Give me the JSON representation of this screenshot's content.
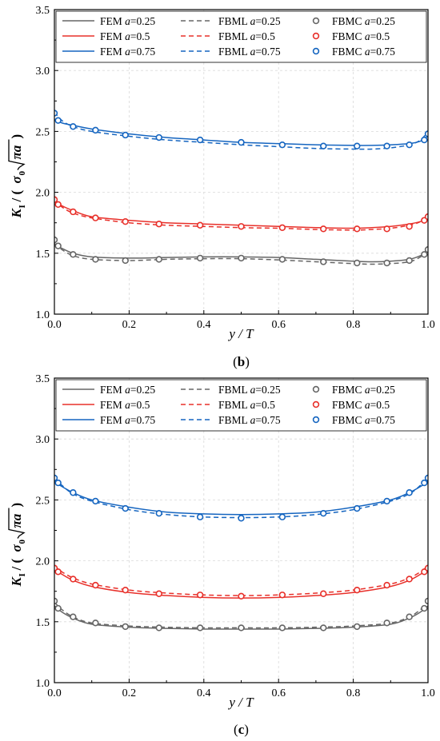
{
  "chart_data": [
    {
      "type": "line",
      "panel_label": "b",
      "xlabel": "y / T",
      "ylabel": "K_I / (σ₀√πa)",
      "xlim": [
        0,
        1
      ],
      "ylim": [
        1.0,
        3.5
      ],
      "xticks": [
        "0.0",
        "0.2",
        "0.4",
        "0.6",
        "0.8",
        "1.0"
      ],
      "yticks": [
        "1.0",
        "1.5",
        "2.0",
        "2.5",
        "3.0",
        "3.5"
      ],
      "grid": true,
      "legend_position": "top",
      "legend": [
        {
          "method": "FEM",
          "a": "0.25",
          "style": "solid",
          "color": "#666666"
        },
        {
          "method": "FBML",
          "a": "0.25",
          "style": "dashed",
          "color": "#666666"
        },
        {
          "method": "FBMC",
          "a": "0.25",
          "style": "circle",
          "color": "#666666"
        },
        {
          "method": "FEM",
          "a": "0.5",
          "style": "solid",
          "color": "#e8302a"
        },
        {
          "method": "FBML",
          "a": "0.5",
          "style": "dashed",
          "color": "#e8302a"
        },
        {
          "method": "FBMC",
          "a": "0.5",
          "style": "circle",
          "color": "#e8302a"
        },
        {
          "method": "FEM",
          "a": "0.75",
          "style": "solid",
          "color": "#1565c0"
        },
        {
          "method": "FBML",
          "a": "0.75",
          "style": "dashed",
          "color": "#1565c0"
        },
        {
          "method": "FBMC",
          "a": "0.75",
          "style": "circle",
          "color": "#1565c0"
        }
      ],
      "series": [
        {
          "key": "FEM a=0.25",
          "color": "#666666",
          "style": "solid",
          "x": [
            0,
            0.02,
            0.05,
            0.1,
            0.2,
            0.3,
            0.4,
            0.5,
            0.6,
            0.7,
            0.8,
            0.85,
            0.9,
            0.95,
            0.98,
            1.0
          ],
          "y": [
            1.57,
            1.54,
            1.5,
            1.47,
            1.46,
            1.465,
            1.47,
            1.47,
            1.465,
            1.45,
            1.435,
            1.43,
            1.435,
            1.45,
            1.48,
            1.51
          ]
        },
        {
          "key": "FBML a=0.25",
          "color": "#666666",
          "style": "dashed",
          "x": [
            0,
            0.02,
            0.05,
            0.1,
            0.2,
            0.3,
            0.4,
            0.5,
            0.6,
            0.7,
            0.8,
            0.85,
            0.9,
            0.95,
            0.98,
            1.0
          ],
          "y": [
            1.58,
            1.53,
            1.48,
            1.45,
            1.44,
            1.45,
            1.455,
            1.455,
            1.445,
            1.43,
            1.415,
            1.41,
            1.415,
            1.43,
            1.47,
            1.52
          ]
        },
        {
          "key": "FBMC a=0.25",
          "color": "#666666",
          "style": "circle",
          "x": [
            0.0,
            0.01,
            0.05,
            0.11,
            0.19,
            0.28,
            0.39,
            0.5,
            0.61,
            0.72,
            0.81,
            0.89,
            0.95,
            0.99,
            1.0
          ],
          "y": [
            1.61,
            1.56,
            1.49,
            1.45,
            1.44,
            1.45,
            1.46,
            1.46,
            1.45,
            1.43,
            1.42,
            1.42,
            1.44,
            1.49,
            1.53
          ]
        },
        {
          "key": "FEM a=0.5",
          "color": "#e8302a",
          "style": "solid",
          "x": [
            0,
            0.02,
            0.05,
            0.1,
            0.2,
            0.3,
            0.4,
            0.5,
            0.6,
            0.7,
            0.8,
            0.85,
            0.9,
            0.95,
            0.98,
            1.0
          ],
          "y": [
            1.93,
            1.89,
            1.85,
            1.8,
            1.77,
            1.75,
            1.74,
            1.73,
            1.72,
            1.71,
            1.705,
            1.71,
            1.72,
            1.74,
            1.76,
            1.79
          ]
        },
        {
          "key": "FBML a=0.5",
          "color": "#e8302a",
          "style": "dashed",
          "x": [
            0,
            0.02,
            0.05,
            0.1,
            0.2,
            0.3,
            0.4,
            0.5,
            0.6,
            0.7,
            0.8,
            0.85,
            0.9,
            0.95,
            0.98,
            1.0
          ],
          "y": [
            1.94,
            1.88,
            1.83,
            1.79,
            1.75,
            1.73,
            1.72,
            1.71,
            1.705,
            1.695,
            1.69,
            1.695,
            1.705,
            1.73,
            1.76,
            1.81
          ]
        },
        {
          "key": "FBMC a=0.5",
          "color": "#e8302a",
          "style": "circle",
          "x": [
            0.0,
            0.01,
            0.05,
            0.11,
            0.19,
            0.28,
            0.39,
            0.5,
            0.61,
            0.72,
            0.81,
            0.89,
            0.95,
            0.99,
            1.0
          ],
          "y": [
            1.94,
            1.9,
            1.84,
            1.79,
            1.76,
            1.74,
            1.73,
            1.72,
            1.71,
            1.7,
            1.7,
            1.7,
            1.72,
            1.77,
            1.8
          ]
        },
        {
          "key": "FEM a=0.75",
          "color": "#1565c0",
          "style": "solid",
          "x": [
            0,
            0.02,
            0.05,
            0.1,
            0.2,
            0.3,
            0.4,
            0.5,
            0.6,
            0.7,
            0.8,
            0.85,
            0.9,
            0.95,
            0.98,
            1.0
          ],
          "y": [
            2.6,
            2.57,
            2.55,
            2.52,
            2.48,
            2.45,
            2.43,
            2.41,
            2.4,
            2.39,
            2.385,
            2.385,
            2.39,
            2.4,
            2.42,
            2.46
          ]
        },
        {
          "key": "FBML a=0.75",
          "color": "#1565c0",
          "style": "dashed",
          "x": [
            0,
            0.02,
            0.05,
            0.1,
            0.2,
            0.3,
            0.4,
            0.5,
            0.6,
            0.7,
            0.8,
            0.85,
            0.9,
            0.95,
            0.98,
            1.0
          ],
          "y": [
            2.66,
            2.59,
            2.54,
            2.5,
            2.46,
            2.43,
            2.41,
            2.39,
            2.375,
            2.36,
            2.355,
            2.355,
            2.365,
            2.39,
            2.43,
            2.5
          ]
        },
        {
          "key": "FBMC a=0.75",
          "color": "#1565c0",
          "style": "circle",
          "x": [
            0.0,
            0.01,
            0.05,
            0.11,
            0.19,
            0.28,
            0.39,
            0.5,
            0.61,
            0.72,
            0.81,
            0.89,
            0.95,
            0.99,
            1.0
          ],
          "y": [
            2.65,
            2.59,
            2.54,
            2.51,
            2.47,
            2.45,
            2.43,
            2.41,
            2.39,
            2.38,
            2.38,
            2.38,
            2.39,
            2.43,
            2.48
          ]
        }
      ]
    },
    {
      "type": "line",
      "panel_label": "c",
      "xlabel": "y / T",
      "ylabel": "K_I / (σ₀√πa)",
      "xlim": [
        0,
        1
      ],
      "ylim": [
        1.0,
        3.5
      ],
      "xticks": [
        "0.0",
        "0.2",
        "0.4",
        "0.6",
        "0.8",
        "1.0"
      ],
      "yticks": [
        "1.0",
        "1.5",
        "2.0",
        "2.5",
        "3.0",
        "3.5"
      ],
      "grid": true,
      "legend_position": "top",
      "legend": [
        {
          "method": "FEM",
          "a": "0.25",
          "style": "solid",
          "color": "#666666"
        },
        {
          "method": "FBML",
          "a": "0.25",
          "style": "dashed",
          "color": "#666666"
        },
        {
          "method": "FBMC",
          "a": "0.25",
          "style": "circle",
          "color": "#666666"
        },
        {
          "method": "FEM",
          "a": "0.5",
          "style": "solid",
          "color": "#e8302a"
        },
        {
          "method": "FBML",
          "a": "0.5",
          "style": "dashed",
          "color": "#e8302a"
        },
        {
          "method": "FBMC",
          "a": "0.5",
          "style": "circle",
          "color": "#e8302a"
        },
        {
          "method": "FEM",
          "a": "0.75",
          "style": "solid",
          "color": "#1565c0"
        },
        {
          "method": "FBML",
          "a": "0.75",
          "style": "dashed",
          "color": "#1565c0"
        },
        {
          "method": "FBMC",
          "a": "0.75",
          "style": "circle",
          "color": "#1565c0"
        }
      ],
      "series": [
        {
          "key": "FEM a=0.25",
          "color": "#666666",
          "style": "solid",
          "x": [
            0,
            0.02,
            0.05,
            0.1,
            0.2,
            0.3,
            0.4,
            0.5,
            0.6,
            0.7,
            0.8,
            0.9,
            0.95,
            0.98,
            1.0
          ],
          "y": [
            1.63,
            1.58,
            1.53,
            1.48,
            1.455,
            1.445,
            1.44,
            1.44,
            1.44,
            1.445,
            1.455,
            1.48,
            1.53,
            1.58,
            1.63
          ]
        },
        {
          "key": "FBML a=0.25",
          "color": "#666666",
          "style": "dashed",
          "x": [
            0,
            0.02,
            0.05,
            0.1,
            0.2,
            0.3,
            0.4,
            0.5,
            0.6,
            0.7,
            0.8,
            0.9,
            0.95,
            0.98,
            1.0
          ],
          "y": [
            1.66,
            1.6,
            1.54,
            1.49,
            1.465,
            1.455,
            1.45,
            1.45,
            1.45,
            1.455,
            1.465,
            1.49,
            1.54,
            1.6,
            1.66
          ]
        },
        {
          "key": "FBMC a=0.25",
          "color": "#666666",
          "style": "circle",
          "x": [
            0.0,
            0.01,
            0.05,
            0.11,
            0.19,
            0.28,
            0.39,
            0.5,
            0.61,
            0.72,
            0.81,
            0.89,
            0.95,
            0.99,
            1.0
          ],
          "y": [
            1.67,
            1.61,
            1.54,
            1.49,
            1.46,
            1.45,
            1.45,
            1.45,
            1.45,
            1.45,
            1.46,
            1.49,
            1.54,
            1.61,
            1.67
          ]
        },
        {
          "key": "FEM a=0.5",
          "color": "#e8302a",
          "style": "solid",
          "x": [
            0,
            0.02,
            0.05,
            0.1,
            0.2,
            0.3,
            0.4,
            0.5,
            0.6,
            0.7,
            0.8,
            0.9,
            0.95,
            0.98,
            1.0
          ],
          "y": [
            1.93,
            1.89,
            1.84,
            1.79,
            1.74,
            1.715,
            1.7,
            1.695,
            1.7,
            1.715,
            1.74,
            1.79,
            1.84,
            1.89,
            1.93
          ]
        },
        {
          "key": "FBML a=0.5",
          "color": "#e8302a",
          "style": "dashed",
          "x": [
            0,
            0.02,
            0.05,
            0.1,
            0.2,
            0.3,
            0.4,
            0.5,
            0.6,
            0.7,
            0.8,
            0.9,
            0.95,
            0.98,
            1.0
          ],
          "y": [
            1.96,
            1.91,
            1.86,
            1.81,
            1.76,
            1.735,
            1.72,
            1.715,
            1.72,
            1.735,
            1.76,
            1.81,
            1.86,
            1.91,
            1.96
          ]
        },
        {
          "key": "FBMC a=0.5",
          "color": "#e8302a",
          "style": "circle",
          "x": [
            0.0,
            0.01,
            0.05,
            0.11,
            0.19,
            0.28,
            0.39,
            0.5,
            0.61,
            0.72,
            0.81,
            0.89,
            0.95,
            0.99,
            1.0
          ],
          "y": [
            1.94,
            1.91,
            1.85,
            1.8,
            1.76,
            1.73,
            1.72,
            1.71,
            1.72,
            1.73,
            1.76,
            1.8,
            1.85,
            1.91,
            1.94
          ]
        },
        {
          "key": "FEM a=0.75",
          "color": "#1565c0",
          "style": "solid",
          "x": [
            0,
            0.02,
            0.05,
            0.1,
            0.2,
            0.3,
            0.4,
            0.5,
            0.6,
            0.7,
            0.8,
            0.9,
            0.95,
            0.98,
            1.0
          ],
          "y": [
            2.65,
            2.61,
            2.56,
            2.5,
            2.44,
            2.4,
            2.385,
            2.38,
            2.385,
            2.4,
            2.44,
            2.5,
            2.56,
            2.61,
            2.65
          ]
        },
        {
          "key": "FBML a=0.75",
          "color": "#1565c0",
          "style": "dashed",
          "x": [
            0,
            0.02,
            0.05,
            0.1,
            0.2,
            0.3,
            0.4,
            0.5,
            0.6,
            0.7,
            0.8,
            0.9,
            0.95,
            0.98,
            1.0
          ],
          "y": [
            2.68,
            2.62,
            2.55,
            2.49,
            2.42,
            2.38,
            2.36,
            2.355,
            2.36,
            2.38,
            2.42,
            2.49,
            2.55,
            2.62,
            2.68
          ]
        },
        {
          "key": "FBMC a=0.75",
          "color": "#1565c0",
          "style": "circle",
          "x": [
            0.0,
            0.01,
            0.05,
            0.11,
            0.19,
            0.28,
            0.39,
            0.5,
            0.61,
            0.72,
            0.81,
            0.89,
            0.95,
            0.99,
            1.0
          ],
          "y": [
            2.68,
            2.64,
            2.56,
            2.49,
            2.43,
            2.39,
            2.36,
            2.35,
            2.36,
            2.39,
            2.43,
            2.49,
            2.56,
            2.64,
            2.68
          ]
        }
      ]
    }
  ]
}
